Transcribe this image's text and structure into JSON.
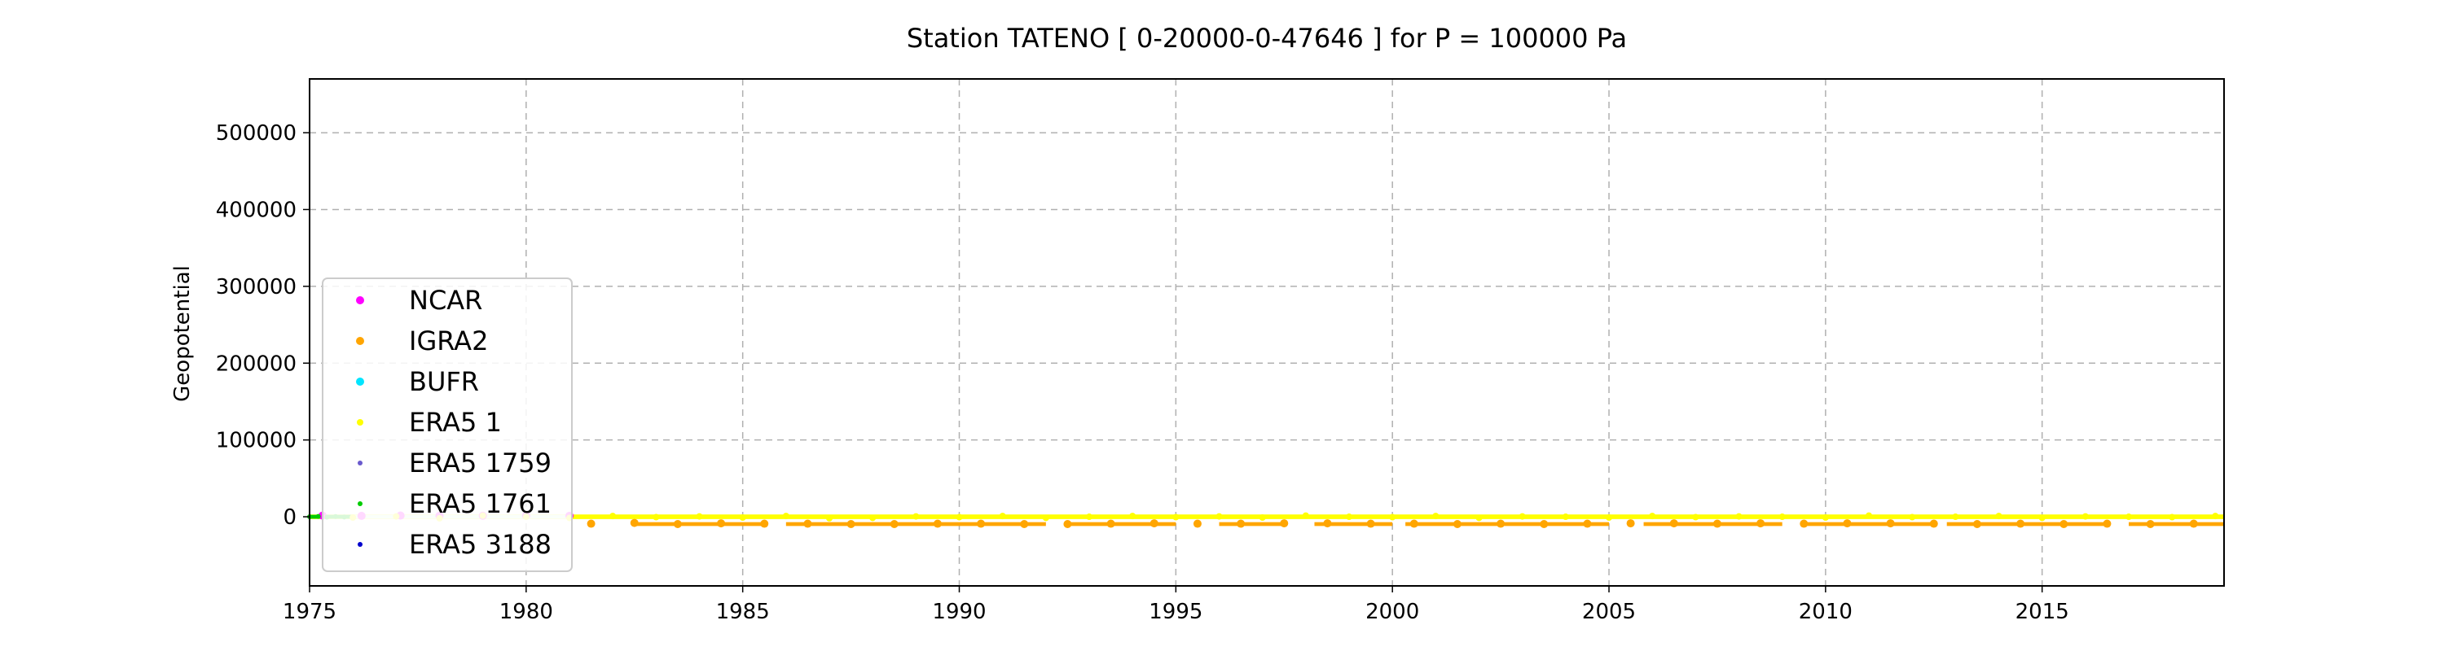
{
  "chart_data": {
    "type": "scatter",
    "title": "Station  TATENO [ 0-20000-0-47646 ]  for P = 100000 Pa",
    "xlabel": "",
    "ylabel": "Geopotential",
    "xlim": [
      1975,
      2019.2
    ],
    "ylim": [
      -90000,
      570000
    ],
    "xticks": [
      1975,
      1980,
      1985,
      1990,
      1995,
      2000,
      2005,
      2010,
      2015
    ],
    "yticks": [
      0,
      100000,
      200000,
      300000,
      400000,
      500000
    ],
    "grid": true,
    "legend_position": "lower-left",
    "series": [
      {
        "name": "NCAR",
        "color": "#ff00ff",
        "marker_size": 5,
        "x": [
          1975.3,
          1976.2,
          1977.1,
          1978.0,
          1979.0,
          1980.0,
          1981.0
        ],
        "y": [
          1500,
          1200,
          1600,
          1300,
          1400,
          1500,
          1300
        ]
      },
      {
        "name": "IGRA2",
        "color": "#ffa500",
        "marker_size": 5,
        "x": [
          1981.5,
          1982.5,
          1983.5,
          1984.5,
          1985.5,
          1986.5,
          1987.5,
          1988.5,
          1989.5,
          1990.5,
          1991.5,
          1992.5,
          1993.5,
          1994.5,
          1995.5,
          1996.5,
          1997.5,
          1998.5,
          1999.5,
          2000.5,
          2001.5,
          2002.5,
          2003.5,
          2004.5,
          2005.5,
          2006.5,
          2007.5,
          2008.5,
          2009.5,
          2010.5,
          2011.5,
          2012.5,
          2013.5,
          2014.5,
          2015.5,
          2016.5,
          2017.5,
          2018.5
        ],
        "y": [
          -9000,
          -8000,
          -9500,
          -8500,
          -9000,
          -9000,
          -9500,
          -9500,
          -9000,
          -9000,
          -9500,
          -9500,
          -9000,
          -8500,
          -9000,
          -9000,
          -8500,
          -8500,
          -9000,
          -9000,
          -9500,
          -9000,
          -9500,
          -9000,
          -8500,
          -8500,
          -9000,
          -8500,
          -9000,
          -8500,
          -8500,
          -9000,
          -9500,
          -9000,
          -9500,
          -9000,
          -9500,
          -9000
        ]
      },
      {
        "name": "BUFR",
        "color": "#00e5ff",
        "marker_size": 5,
        "x": [],
        "y": []
      },
      {
        "name": "ERA5 1",
        "color": "#ffff00",
        "marker_size": 4,
        "x": [
          1976.0,
          1977.0,
          1978.0,
          1979.0,
          1980.0,
          1981.0,
          1982.0,
          1983.0,
          1984.0,
          1985.0,
          1986.0,
          1987.0,
          1988.0,
          1989.0,
          1990.0,
          1991.0,
          1992.0,
          1993.0,
          1994.0,
          1995.0,
          1996.0,
          1997.0,
          1998.0,
          1999.0,
          2000.0,
          2001.0,
          2002.0,
          2003.0,
          2004.0,
          2005.0,
          2006.0,
          2007.0,
          2008.0,
          2009.0,
          2010.0,
          2011.0,
          2012.0,
          2013.0,
          2014.0,
          2015.0,
          2016.0,
          2017.0,
          2018.0,
          2019.0
        ],
        "y": [
          -1000,
          500,
          -2000,
          1500,
          0,
          -1500,
          1000,
          -500,
          500,
          -1000,
          1000,
          -2000,
          -1500,
          500,
          -500,
          1000,
          -1500,
          0,
          1000,
          -500,
          500,
          -1000,
          1500,
          0,
          -500,
          1000,
          -1500,
          500,
          0,
          -1000,
          1000,
          -500,
          500,
          0,
          -1000,
          1500,
          -500,
          0,
          1000,
          -1500,
          500,
          0,
          -500,
          1000
        ]
      },
      {
        "name": "ERA5 1759",
        "color": "#6a5acd",
        "marker_size": 3,
        "x": [],
        "y": []
      },
      {
        "name": "ERA5 1761",
        "color": "#00cc00",
        "marker_size": 3,
        "x": [
          1975.0,
          1975.2,
          1975.4,
          1975.6,
          1975.8
        ],
        "y": [
          0,
          500,
          -500,
          300,
          -300
        ]
      },
      {
        "name": "ERA5 3188",
        "color": "#0000cd",
        "marker_size": 3,
        "x": [],
        "y": []
      }
    ]
  }
}
